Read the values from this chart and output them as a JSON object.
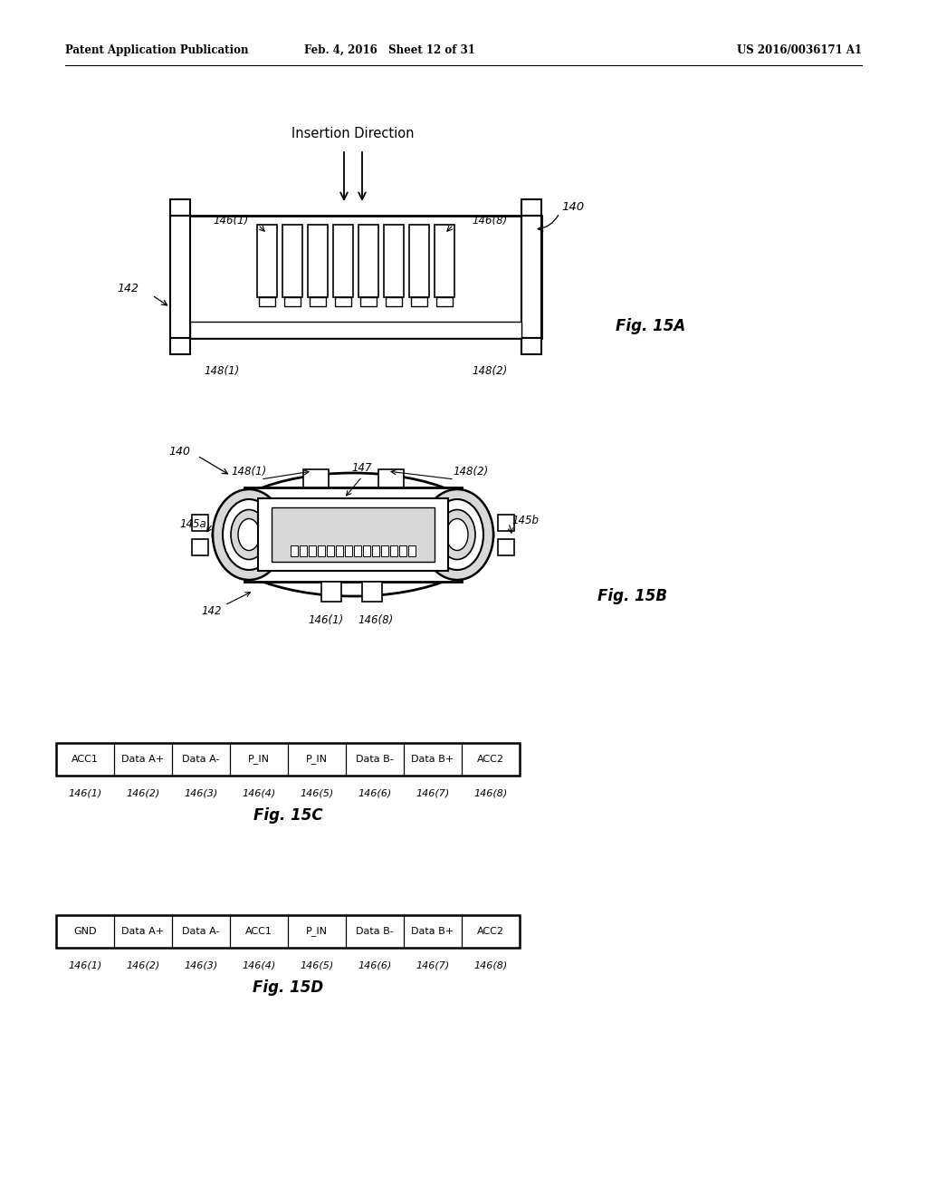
{
  "background_color": "#ffffff",
  "header_left": "Patent Application Publication",
  "header_center": "Feb. 4, 2016   Sheet 12 of 31",
  "header_right": "US 2016/0036171 A1",
  "fig15a_title": "Fig. 15A",
  "fig15b_title": "Fig. 15B",
  "fig15c_title": "Fig. 15C",
  "fig15d_title": "Fig. 15D",
  "insertion_direction_label": "Insertion Direction",
  "table_c_headers": [
    "ACC1",
    "Data A+",
    "Data A-",
    "P_IN",
    "P_IN",
    "Data B-",
    "Data B+",
    "ACC2"
  ],
  "table_c_labels": [
    "146(1)",
    "146(2)",
    "146(3)",
    "146(4)",
    "146(5)",
    "146(6)",
    "146(7)",
    "146(8)"
  ],
  "table_d_headers": [
    "GND",
    "Data A+",
    "Data A-",
    "ACC1",
    "P_IN",
    "Data B-",
    "Data B+",
    "ACC2"
  ],
  "table_d_labels": [
    "146(1)",
    "146(2)",
    "146(3)",
    "146(4)",
    "146(5)",
    "146(6)",
    "146(7)",
    "146(8)"
  ],
  "line_color": "#000000",
  "text_color": "#000000",
  "light_gray": "#d8d8d8",
  "mid_gray": "#aaaaaa",
  "dark_gray": "#666666"
}
